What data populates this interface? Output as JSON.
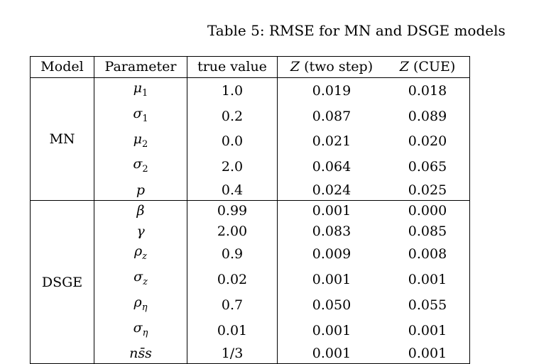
{
  "caption": "Table 5: RMSE for MN and DSGE models",
  "table": {
    "headers": {
      "model": "Model",
      "parameter": "Parameter",
      "true_value": "true value",
      "z_symbol": "Z",
      "two_step": "(two step)",
      "cue": "(CUE)"
    },
    "groups": [
      {
        "model": "MN",
        "rows": [
          {
            "parameter": "μ",
            "sub": "1",
            "true_value": "1.0",
            "two_step": "0.019",
            "cue": "0.018"
          },
          {
            "parameter": "σ",
            "sub": "1",
            "true_value": "0.2",
            "two_step": "0.087",
            "cue": "0.089"
          },
          {
            "parameter": "μ",
            "sub": "2",
            "true_value": "0.0",
            "two_step": "0.021",
            "cue": "0.020"
          },
          {
            "parameter": "σ",
            "sub": "2",
            "true_value": "2.0",
            "two_step": "0.064",
            "cue": "0.065"
          },
          {
            "parameter": "p",
            "sub": "",
            "true_value": "0.4",
            "two_step": "0.024",
            "cue": "0.025"
          }
        ]
      },
      {
        "model": "DSGE",
        "rows": [
          {
            "parameter": "β",
            "sub": "",
            "true_value": "0.99",
            "two_step": "0.001",
            "cue": "0.000"
          },
          {
            "parameter": "γ",
            "sub": "",
            "true_value": "2.00",
            "two_step": "0.083",
            "cue": "0.085"
          },
          {
            "parameter": "ρ",
            "sub": "z",
            "true_value": "0.9",
            "two_step": "0.009",
            "cue": "0.008"
          },
          {
            "parameter": "σ",
            "sub": "z",
            "true_value": "0.02",
            "two_step": "0.001",
            "cue": "0.001"
          },
          {
            "parameter": "ρ",
            "sub": "η",
            "true_value": "0.7",
            "two_step": "0.050",
            "cue": "0.055"
          },
          {
            "parameter": "σ",
            "sub": "η",
            "true_value": "0.01",
            "two_step": "0.001",
            "cue": "0.001"
          },
          {
            "parameter": "ns̄s",
            "sub": "",
            "true_value": "1/3",
            "two_step": "0.001",
            "cue": "0.001"
          }
        ]
      }
    ]
  }
}
